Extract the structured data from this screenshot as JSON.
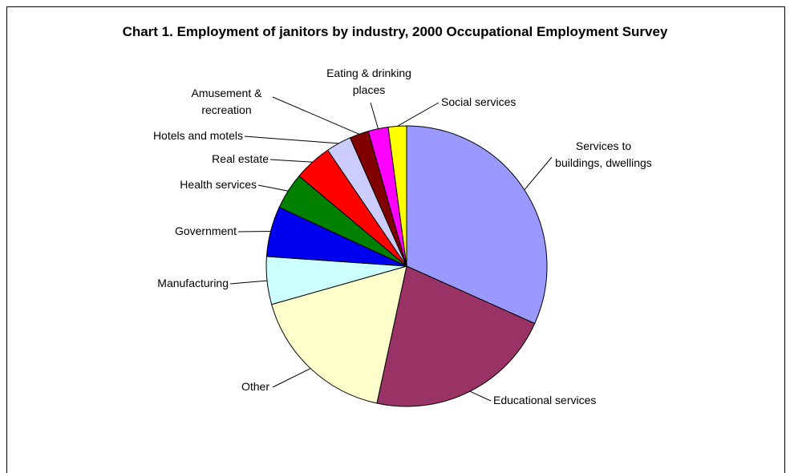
{
  "chart_data": {
    "type": "pie",
    "title": "Chart 1. Employment of janitors by industry, 2000 Occupational Employment Survey",
    "categories": [
      "Services to buildings, dwellings",
      "Educational services",
      "Other",
      "Manufacturing",
      "Government",
      "Health services",
      "Real estate",
      "Hotels and motels",
      "Amusement & recreation",
      "Eating & drinking places",
      "Social services"
    ],
    "values": [
      31.7,
      21.7,
      17.2,
      5.5,
      5.8,
      4.2,
      4.4,
      2.9,
      2.2,
      2.3,
      2.1
    ],
    "colors": [
      "#9999ff",
      "#993366",
      "#ffffcc",
      "#ccffff",
      "#0000ee",
      "#008000",
      "#ff0000",
      "#ccccff",
      "#800000",
      "#ff00ff",
      "#ffff00"
    ]
  }
}
